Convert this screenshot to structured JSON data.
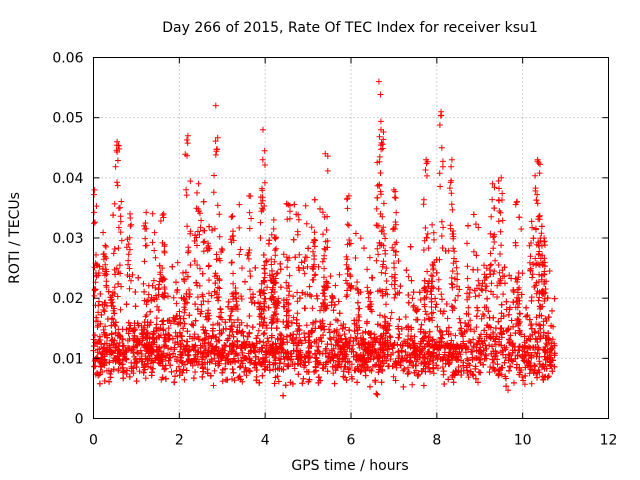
{
  "chart_data": {
    "type": "scatter",
    "title": "Day 266 of 2015, Rate Of TEC Index for receiver ksu1",
    "xlabel": "GPS time / hours",
    "ylabel": "ROTI / TECUs",
    "xlim": [
      0,
      12
    ],
    "ylim": [
      0,
      0.06
    ],
    "x_ticks": [
      "0",
      "2",
      "4",
      "6",
      "8",
      "10",
      "12"
    ],
    "y_ticks": [
      "0",
      "0.01",
      "0.02",
      "0.03",
      "0.04",
      "0.05",
      "0.06"
    ],
    "grid": true,
    "marker": "+",
    "series": [
      {
        "name": "ROTI",
        "color": "#ff0000",
        "x_range": [
          0,
          10.75
        ],
        "typical_min": 0.003,
        "typical_median": 0.011,
        "sample_points": [
          {
            "x": 0.02,
            "y": 0.038
          },
          {
            "x": 0.55,
            "y": 0.046
          },
          {
            "x": 0.85,
            "y": 0.034
          },
          {
            "x": 1.6,
            "y": 0.025
          },
          {
            "x": 2.2,
            "y": 0.047
          },
          {
            "x": 2.45,
            "y": 0.039
          },
          {
            "x": 2.85,
            "y": 0.052
          },
          {
            "x": 3.95,
            "y": 0.048
          },
          {
            "x": 4.2,
            "y": 0.033
          },
          {
            "x": 5.4,
            "y": 0.044
          },
          {
            "x": 5.95,
            "y": 0.037
          },
          {
            "x": 6.65,
            "y": 0.056
          },
          {
            "x": 6.7,
            "y": 0.048
          },
          {
            "x": 7.0,
            "y": 0.038
          },
          {
            "x": 7.75,
            "y": 0.043
          },
          {
            "x": 8.1,
            "y": 0.051
          },
          {
            "x": 8.35,
            "y": 0.043
          },
          {
            "x": 9.3,
            "y": 0.039
          },
          {
            "x": 9.5,
            "y": 0.04
          },
          {
            "x": 10.35,
            "y": 0.043
          },
          {
            "x": 10.5,
            "y": 0.03
          }
        ]
      }
    ]
  }
}
